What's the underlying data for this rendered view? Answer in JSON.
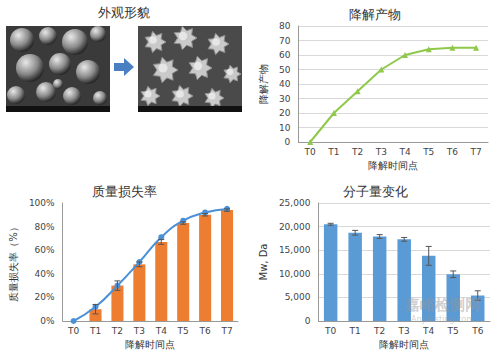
{
  "image_panel": {
    "title": "外观形貌"
  },
  "watermark": {
    "text": "嘉峪检测网",
    "subtext": "AnyTesting.com"
  },
  "chart_data": [
    {
      "type": "line",
      "title": "降解产物",
      "x_label": "降解时间点",
      "y_label": "降解产物",
      "categories": [
        "T0",
        "T1",
        "T2",
        "T3",
        "T4",
        "T5",
        "T6",
        "T7"
      ],
      "series": [
        {
          "color": "#8fc84a",
          "marker": "triangle",
          "line_style": "solid",
          "values": [
            0,
            20,
            35,
            50,
            60,
            64,
            65,
            65
          ]
        }
      ],
      "ylim": [
        0,
        80
      ],
      "yticks": [
        0,
        10,
        20,
        30,
        40,
        50,
        60,
        70,
        80
      ],
      "grid": true
    },
    {
      "type": "bar",
      "title": "质量损失率",
      "x_label": "降解时间点",
      "y_label": "质量损失率（%）",
      "categories": [
        "T0",
        "T1",
        "T2",
        "T3",
        "T4",
        "T5",
        "T6",
        "T7"
      ],
      "series": [
        {
          "type": "bar",
          "color": "#ed7d31",
          "values": [
            0,
            10,
            30,
            48,
            67,
            83,
            90,
            94
          ],
          "errors": [
            0,
            4,
            4,
            2,
            2,
            1,
            1,
            1
          ]
        },
        {
          "type": "line",
          "color": "#4a90d9",
          "marker": "circle",
          "line_style": "smooth",
          "values": [
            0,
            12,
            30,
            50,
            71,
            85,
            92,
            95
          ]
        }
      ],
      "ylim": [
        0,
        100
      ],
      "yticks": [
        {
          "value": 0,
          "label": "0%"
        },
        {
          "value": 20,
          "label": "20%"
        },
        {
          "value": 40,
          "label": "40%"
        },
        {
          "value": 60,
          "label": "60%"
        },
        {
          "value": 80,
          "label": "80%"
        },
        {
          "value": 100,
          "label": "100%"
        }
      ],
      "grid": false
    },
    {
      "type": "bar",
      "title": "分子量变化",
      "x_label": "降解时间点",
      "y_label": "Mw, Da",
      "categories": [
        "T0",
        "T1",
        "T2",
        "T3",
        "T4",
        "T5",
        "T6"
      ],
      "series": [
        {
          "color": "#5b9bd5",
          "values": [
            20500,
            18700,
            17900,
            17300,
            13800,
            9900,
            5400
          ],
          "errors": [
            200,
            500,
            400,
            400,
            2000,
            700,
            1000
          ]
        }
      ],
      "ylim": [
        0,
        25000
      ],
      "yticks": [
        0,
        {
          "value": 5000,
          "label": "5,000"
        },
        {
          "value": 10000,
          "label": "10,000"
        },
        {
          "value": 15000,
          "label": "15,000"
        },
        {
          "value": 20000,
          "label": "20,000"
        },
        {
          "value": 25000,
          "label": "25,000"
        }
      ],
      "grid": true
    }
  ]
}
